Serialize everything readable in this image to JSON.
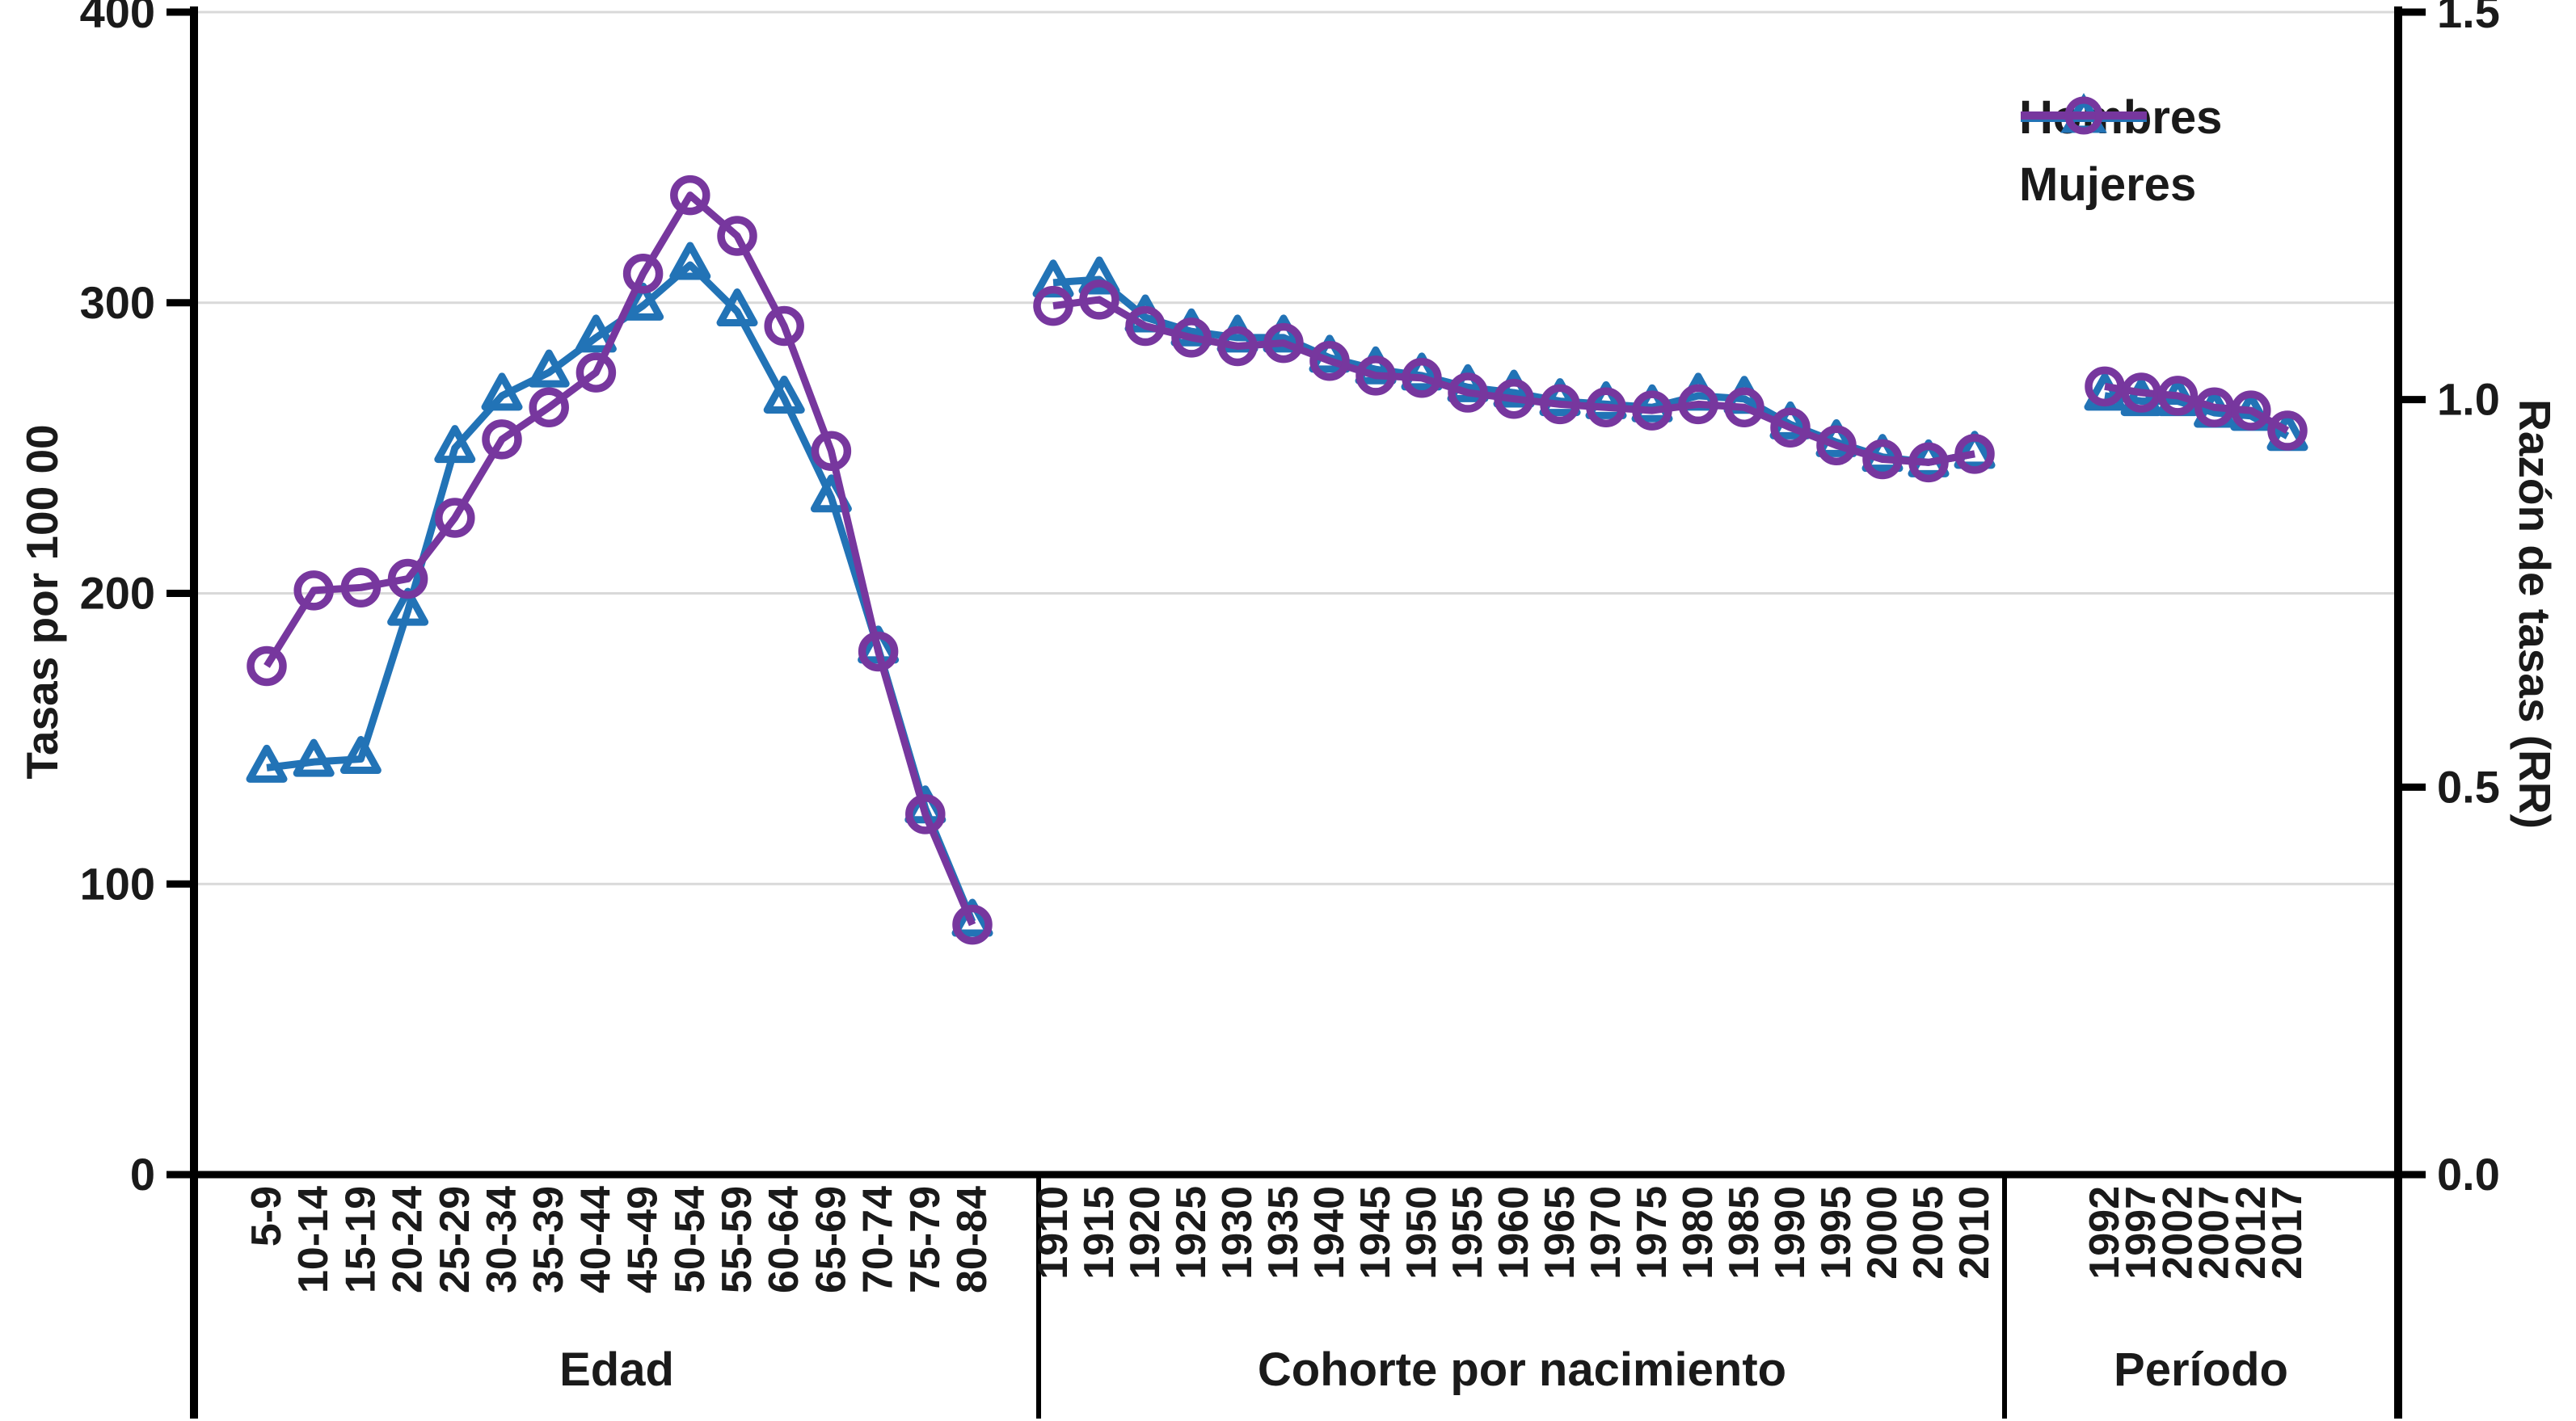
{
  "chart_data": {
    "type": "line",
    "title": "",
    "left_axis": {
      "label": "Tasas por 100 00",
      "ticks": [
        0,
        100,
        200,
        300,
        400
      ],
      "range": [
        0,
        400
      ]
    },
    "right_axis": {
      "label": "Razón de tasas (RR)",
      "ticks": [
        0.0,
        0.5,
        1.0,
        1.5
      ],
      "range": [
        0,
        1.5
      ]
    },
    "grid": true,
    "legend": {
      "position": "top-right",
      "entries": [
        {
          "label": "Hombres",
          "marker": "triangle",
          "color": "#2273B6"
        },
        {
          "label": "Mujeres",
          "marker": "circle",
          "color": "#77379E"
        }
      ]
    },
    "sections": [
      {
        "name": "age",
        "label": "Edad",
        "value_axis": "left",
        "categories": [
          "5-9",
          "10-14",
          "15-19",
          "20-24",
          "25-29",
          "30-34",
          "35-39",
          "40-44",
          "45-49",
          "50-54",
          "55-59",
          "60-64",
          "65-69",
          "70-74",
          "75-79",
          "80-84"
        ],
        "series": [
          {
            "name": "Hombres",
            "values": [
              140,
              142,
              143,
              194,
              250,
              268,
              276,
              288,
              299,
              313,
              297,
              267,
              233,
              181,
              126,
              87
            ]
          },
          {
            "name": "Mujeres",
            "values": [
              175,
              201,
              202,
              205,
              226,
              253,
              264,
              276,
              310,
              337,
              323,
              292,
              249,
              180,
              124,
              86
            ]
          }
        ]
      },
      {
        "name": "cohort",
        "label": "Cohorte por nacimiento",
        "value_axis": "right",
        "categories": [
          "1910",
          "1915",
          "1920",
          "1925",
          "1930",
          "1935",
          "1940",
          "1945",
          "1950",
          "1955",
          "1960",
          "1965",
          "1970",
          "1975",
          "1980",
          "1985",
          "1990",
          "1995",
          "2000",
          "2005",
          "2010"
        ],
        "series": [
          {
            "name": "Hombres",
            "values": [
              1.151,
              1.155,
              1.106,
              1.088,
              1.08,
              1.08,
              1.054,
              1.039,
              1.031,
              1.016,
              1.009,
              0.998,
              0.994,
              0.99,
              1.005,
              1.001,
              0.968,
              0.945,
              0.926,
              0.919,
              0.93
            ]
          },
          {
            "name": "Mujeres",
            "values": [
              1.121,
              1.129,
              1.095,
              1.08,
              1.069,
              1.073,
              1.05,
              1.031,
              1.028,
              1.009,
              1.001,
              0.994,
              0.99,
              0.986,
              0.994,
              0.99,
              0.964,
              0.941,
              0.923,
              0.919,
              0.93
            ]
          }
        ]
      },
      {
        "name": "period",
        "label": "Período",
        "value_axis": "right",
        "categories": [
          "1992",
          "1997",
          "2002",
          "2007",
          "2012",
          "2017"
        ],
        "series": [
          {
            "name": "Hombres",
            "values": [
              1.005,
              0.998,
              0.998,
              0.983,
              0.979,
              0.953
            ]
          },
          {
            "name": "Mujeres",
            "values": [
              1.017,
              1.009,
              1.005,
              0.99,
              0.986,
              0.96
            ]
          }
        ]
      }
    ]
  },
  "colors": {
    "hombres": "#2273B6",
    "mujeres": "#77379E",
    "grid": "#D9D9D9",
    "axis": "#000000",
    "text": "#1A1A1A"
  }
}
